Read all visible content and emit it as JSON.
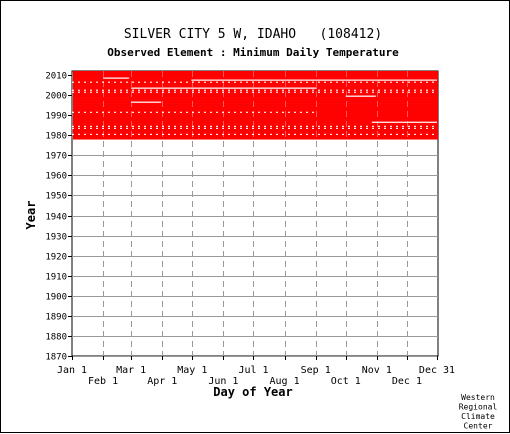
{
  "chart_data": {
    "type": "heatmap",
    "title": "SILVER CITY 5 W, IDAHO   (108412)",
    "subtitle": "Observed Element : Minimum Daily Temperature",
    "xlabel": "Day of Year",
    "ylabel": "Year",
    "xlim": [
      1,
      365
    ],
    "ylim": [
      1870,
      2012
    ],
    "x_ticks_top": [
      "Jan 1",
      "Mar 1",
      "May 1",
      "Jul 1",
      "Sep 1",
      "Nov 1",
      "Dec 31"
    ],
    "x_ticks_bottom": [
      "Feb 1",
      "Apr 1",
      "Jun 1",
      "Aug 1",
      "Oct 1",
      "Dec 1"
    ],
    "y_ticks": [
      2010,
      2000,
      1990,
      1980,
      1970,
      1960,
      1950,
      1940,
      1930,
      1920,
      1910,
      1900,
      1890,
      1880,
      1870
    ],
    "grid": true,
    "data_color": "#ff0000",
    "coverage": [
      {
        "year_start": 1978,
        "year_end": 2011,
        "day_start": 1,
        "day_end": 365,
        "observed": true
      }
    ],
    "gaps": [
      {
        "year": 2008,
        "day_start": 32,
        "day_end": 58
      },
      {
        "year": 2007,
        "day_start": 120,
        "day_end": 365
      },
      {
        "year": 2006,
        "day_start": 1,
        "day_end": 365,
        "partial": true
      },
      {
        "year": 2003,
        "day_start": 60,
        "day_end": 245
      },
      {
        "year": 2002,
        "day_start": 1,
        "day_end": 365,
        "partial": true
      },
      {
        "year": 2001,
        "day_start": 1,
        "day_end": 365,
        "partial": true
      },
      {
        "year": 1999,
        "day_start": 274,
        "day_end": 304
      },
      {
        "year": 1996,
        "day_start": 60,
        "day_end": 90
      },
      {
        "year": 1991,
        "day_start": 1,
        "day_end": 245,
        "partial": true
      },
      {
        "year": 1986,
        "day_start": 300,
        "day_end": 365
      },
      {
        "year": 1984,
        "day_start": 1,
        "day_end": 365,
        "partial": true
      },
      {
        "year": 1983,
        "day_start": 1,
        "day_end": 365,
        "partial": true
      },
      {
        "year": 1980,
        "day_start": 1,
        "day_end": 365,
        "partial": true
      }
    ]
  },
  "credit": [
    "Western",
    "Regional",
    "Climate",
    "Center"
  ]
}
